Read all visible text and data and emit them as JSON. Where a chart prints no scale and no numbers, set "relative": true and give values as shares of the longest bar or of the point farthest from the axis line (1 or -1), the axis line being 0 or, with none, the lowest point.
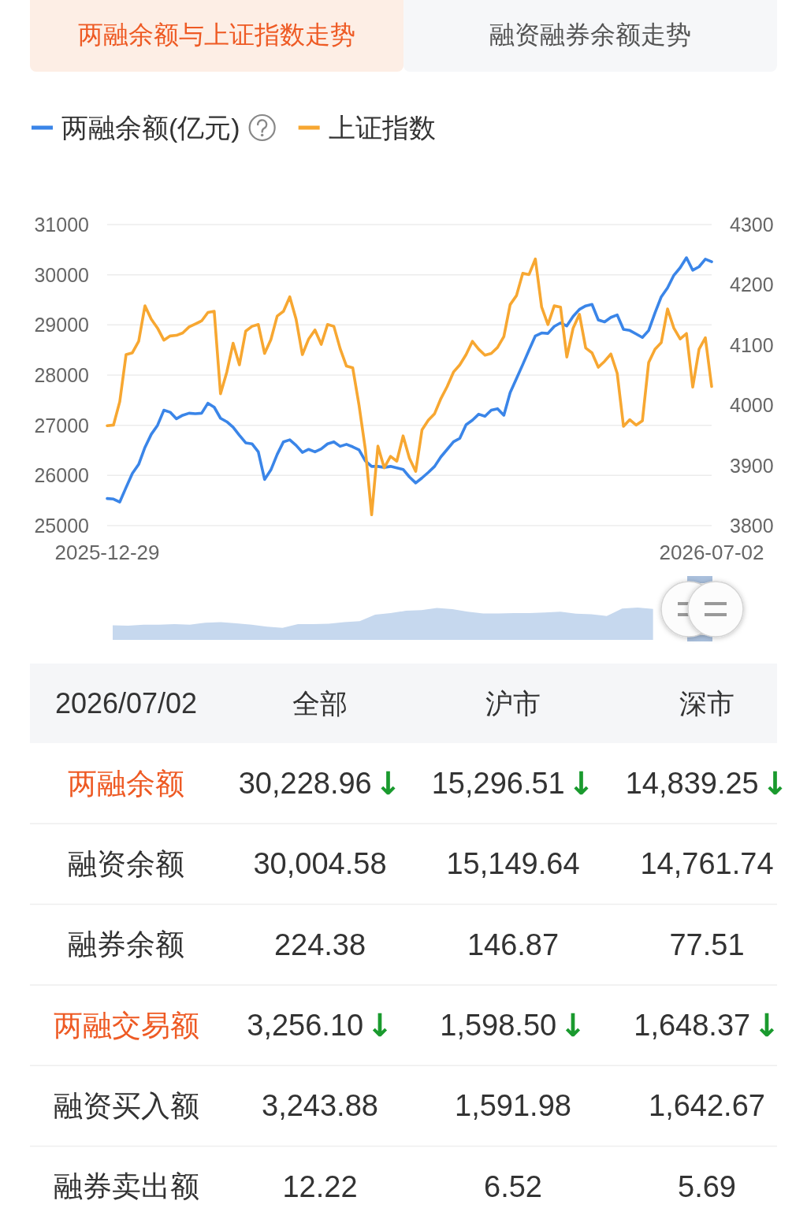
{
  "chart_data": [
    {
      "type": "other",
      "categories": [
        "两融余额与上证指数走势",
        "融资融券余额走势"
      ],
      "colors": [
        "#fdeee5",
        "#f6f7f9"
      ]
    },
    {
      "type": "line",
      "categories": [
        "2025-12-29",
        null,
        null,
        null,
        null,
        null,
        null,
        null,
        null,
        null,
        null,
        null,
        null,
        null,
        null,
        null,
        null,
        null,
        null,
        null,
        null,
        null,
        null,
        null,
        null,
        null,
        null,
        null,
        null,
        null,
        null,
        null,
        null,
        null,
        null,
        null,
        null,
        null,
        null,
        null,
        null,
        null,
        null,
        null,
        null,
        null,
        null,
        null,
        null,
        null,
        null,
        null,
        null,
        null,
        null,
        null,
        null,
        null,
        null,
        null,
        null,
        null,
        null,
        null,
        null,
        null,
        null,
        null,
        null,
        null,
        null,
        null,
        null,
        null,
        null,
        null,
        null,
        null,
        null,
        null,
        null,
        null,
        null,
        null,
        null,
        null,
        null,
        null,
        null,
        null,
        null,
        null,
        null,
        null,
        null,
        null,
        "2026-07-02"
      ],
      "series": [
        {
          "name": "两融余额(亿元)",
          "color": "#3a85e8",
          "values": [
            25540,
            25530,
            25470,
            25760,
            26040,
            26220,
            26560,
            26820,
            27000,
            27300,
            27260,
            27130,
            27200,
            27240,
            27230,
            27240,
            27440,
            27360,
            27140,
            27070,
            26960,
            26800,
            26650,
            26630,
            26470,
            25920,
            26110,
            26420,
            26670,
            26710,
            26600,
            26460,
            26520,
            26470,
            26530,
            26630,
            26670,
            26580,
            26620,
            26570,
            26510,
            26290,
            26180,
            26180,
            26160,
            26180,
            26150,
            26120,
            25970,
            25850,
            25950,
            26060,
            26180,
            26370,
            26520,
            26670,
            26740,
            27010,
            27100,
            27220,
            27180,
            27300,
            27330,
            27200,
            27650,
            27930,
            28210,
            28500,
            28780,
            28840,
            28830,
            28970,
            29040,
            28980,
            29170,
            29310,
            29380,
            29410,
            29100,
            29060,
            29150,
            29200,
            28910,
            28890,
            28820,
            28750,
            28890,
            29240,
            29560,
            29740,
            29990,
            30140,
            30340,
            30090,
            30160,
            30310,
            30260
          ]
        },
        {
          "name": "上证指数",
          "color": "#f7a731",
          "axis": "y2",
          "values": [
            3966,
            3967,
            4006,
            4084,
            4087,
            4106,
            4165,
            4143,
            4128,
            4108,
            4115,
            4116,
            4120,
            4130,
            4135,
            4140,
            4154,
            4156,
            4019,
            4055,
            4103,
            4067,
            4123,
            4131,
            4134,
            4086,
            4109,
            4148,
            4156,
            4180,
            4143,
            4084,
            4110,
            4125,
            4101,
            4134,
            4131,
            4094,
            4065,
            4062,
            4000,
            3927,
            3818,
            3932,
            3896,
            3915,
            3907,
            3949,
            3912,
            3890,
            3959,
            3975,
            3986,
            4011,
            4031,
            4055,
            4067,
            4084,
            4106,
            4093,
            4083,
            4086,
            4096,
            4114,
            4167,
            4182,
            4219,
            4217,
            4243,
            4163,
            4134,
            4165,
            4163,
            4080,
            4128,
            4151,
            4095,
            4087,
            4063,
            4073,
            4085,
            4053,
            3965,
            3976,
            3967,
            3974,
            4071,
            4093,
            4104,
            4160,
            4128,
            4110,
            4119,
            4030,
            4093,
            4112,
            4031
          ]
        }
      ],
      "ylim": [
        25000,
        31000
      ],
      "yticks": [
        25000,
        26000,
        27000,
        28000,
        29000,
        30000,
        31000
      ],
      "y2lim": [
        3800,
        4300
      ],
      "y2ticks": [
        3800,
        3900,
        4000,
        4100,
        4200,
        4300
      ],
      "grid": "y",
      "legend": "top left"
    },
    {
      "type": "area",
      "relative": true,
      "color": "#c6d8ee",
      "categories": [
        null,
        null,
        null,
        null,
        null,
        null,
        null,
        null,
        null,
        null,
        null,
        null,
        null,
        null,
        null,
        null,
        null,
        null,
        null,
        null,
        null,
        null,
        null,
        null,
        null,
        null,
        null,
        null,
        null,
        null,
        null,
        null,
        null,
        null,
        null,
        null,
        null,
        null,
        null,
        null
      ],
      "values": [
        0.45,
        0.44,
        0.47,
        0.47,
        0.49,
        0.47,
        0.53,
        0.55,
        0.51,
        0.47,
        0.41,
        0.37,
        0.49,
        0.49,
        0.5,
        0.55,
        0.58,
        0.78,
        0.83,
        0.9,
        0.92,
        0.99,
        0.95,
        0.87,
        0.82,
        0.82,
        0.83,
        0.83,
        0.85,
        0.87,
        0.81,
        0.79,
        0.74,
        0.97,
        1,
        0.96,
        null,
        null,
        null,
        null
      ]
    },
    {
      "type": "other",
      "title": "2026/07/02",
      "categories": [
        "全部",
        "沪市",
        "深市"
      ],
      "y_categories": [
        "两融余额",
        "融资余额",
        "融券余额",
        "两融交易额",
        "融资买入额",
        "融券卖出额"
      ],
      "cell_labels": [
        [
          "30,228.96↓",
          "15,296.51↓",
          "14,839.25↓"
        ],
        [
          "30,004.58",
          "15,149.64",
          "14,761.74"
        ],
        [
          "224.38",
          "146.87",
          "77.51"
        ],
        [
          "3,256.10↓",
          "1,598.50↓",
          "1,648.37↓"
        ],
        [
          "3,243.88",
          "1,591.98",
          "1,642.67"
        ],
        [
          "12.22",
          "6.52",
          "5.69"
        ]
      ]
    }
  ]
}
